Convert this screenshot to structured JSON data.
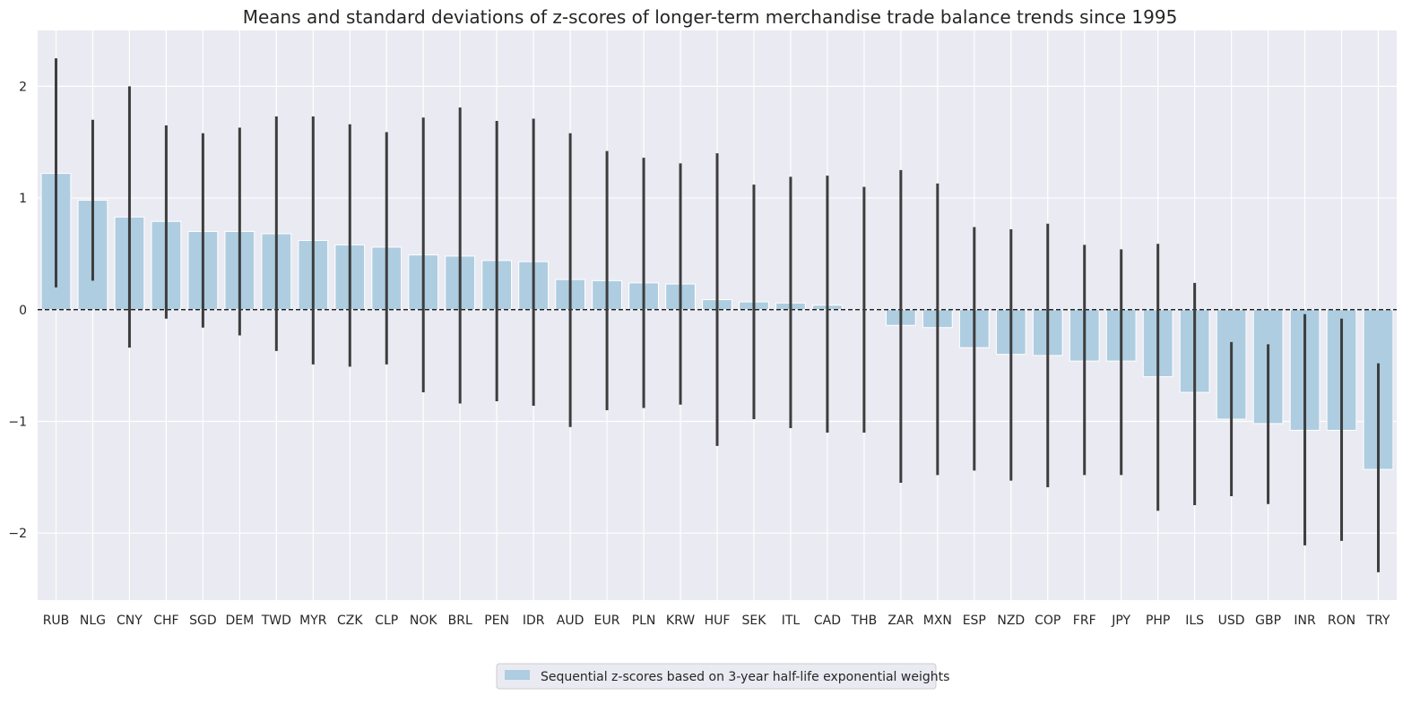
{
  "chart_data": {
    "type": "bar",
    "title": "Means and standard deviations of z-scores of longer-term merchandise trade balance trends since 1995",
    "xlabel": "",
    "ylabel": "",
    "ylim": [
      -2.6,
      2.5
    ],
    "yticks": [
      -2,
      -1,
      0,
      1,
      2
    ],
    "grid": true,
    "legend_position": "bottom-center",
    "reference_line": 0,
    "categories": [
      "RUB",
      "NLG",
      "CNY",
      "CHF",
      "SGD",
      "DEM",
      "TWD",
      "MYR",
      "CZK",
      "CLP",
      "NOK",
      "BRL",
      "PEN",
      "IDR",
      "AUD",
      "EUR",
      "PLN",
      "KRW",
      "HUF",
      "SEK",
      "ITL",
      "CAD",
      "THB",
      "ZAR",
      "MXN",
      "ESP",
      "NZD",
      "COP",
      "FRF",
      "JPY",
      "PHP",
      "ILS",
      "USD",
      "GBP",
      "INR",
      "RON",
      "TRY"
    ],
    "series": [
      {
        "name": "Sequential z-scores based on 3-year half-life exponential weights",
        "values": [
          1.22,
          0.98,
          0.83,
          0.79,
          0.7,
          0.7,
          0.68,
          0.62,
          0.58,
          0.56,
          0.49,
          0.48,
          0.44,
          0.43,
          0.27,
          0.26,
          0.24,
          0.23,
          0.09,
          0.07,
          0.06,
          0.04,
          0.0,
          -0.14,
          -0.16,
          -0.34,
          -0.4,
          -0.41,
          -0.46,
          -0.46,
          -0.6,
          -0.74,
          -0.98,
          -1.02,
          -1.08,
          -1.08,
          -1.43
        ],
        "err_low": [
          0.2,
          0.26,
          -0.34,
          -0.08,
          -0.16,
          -0.23,
          -0.37,
          -0.49,
          -0.51,
          -0.49,
          -0.74,
          -0.84,
          -0.82,
          -0.86,
          -1.05,
          -0.9,
          -0.88,
          -0.85,
          -1.22,
          -0.98,
          -1.06,
          -1.1,
          -1.1,
          -1.55,
          -1.48,
          -1.44,
          -1.53,
          -1.59,
          -1.48,
          -1.48,
          -1.8,
          -1.75,
          -1.67,
          -1.74,
          -2.11,
          -2.07,
          -2.35
        ],
        "err_high": [
          2.25,
          1.7,
          2.0,
          1.65,
          1.58,
          1.63,
          1.73,
          1.73,
          1.66,
          1.59,
          1.72,
          1.81,
          1.69,
          1.71,
          1.58,
          1.42,
          1.36,
          1.31,
          1.4,
          1.12,
          1.19,
          1.2,
          1.1,
          1.25,
          1.13,
          0.74,
          0.72,
          0.77,
          0.58,
          0.54,
          0.59,
          0.24,
          -0.29,
          -0.31,
          -0.04,
          -0.08,
          -0.48
        ]
      }
    ],
    "colors": {
      "bar": "#aecde0",
      "error_bar": "#3d3d3d",
      "plot_background": "#eaeaf2",
      "grid": "#ffffff",
      "text": "#262626"
    }
  }
}
